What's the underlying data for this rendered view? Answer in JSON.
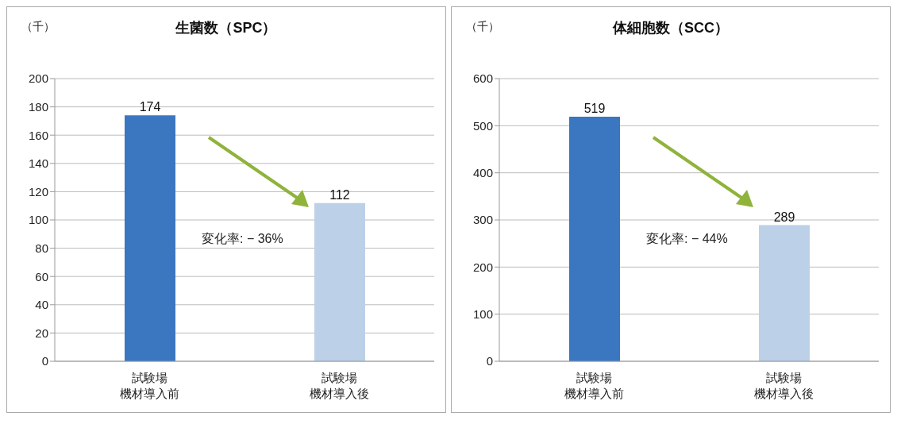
{
  "chart_data": [
    {
      "type": "bar",
      "title": "生菌数（SPC）",
      "ylabel": "（千）",
      "categories": [
        "試験場機材導入前",
        "試験場機材導入後"
      ],
      "values": [
        174,
        112
      ],
      "colors": [
        "#3b76c0",
        "#bcd0e8"
      ],
      "ylim": [
        0,
        200
      ],
      "yticks": [
        0,
        20,
        40,
        60,
        80,
        100,
        120,
        140,
        160,
        180,
        200
      ],
      "grid": "y",
      "data_labels": true,
      "annotations": [
        "変化率: − 36%"
      ]
    },
    {
      "type": "bar",
      "title": "体細胞数（SCC）",
      "ylabel": "（千）",
      "categories": [
        "試験場機材導入前",
        "試験場機材導入後"
      ],
      "values": [
        519,
        289
      ],
      "colors": [
        "#3b76c0",
        "#bcd0e8"
      ],
      "ylim": [
        0,
        600
      ],
      "yticks": [
        0,
        100,
        200,
        300,
        400,
        500,
        600
      ],
      "grid": "y",
      "data_labels": true,
      "annotations": [
        "変化率: − 44%"
      ]
    }
  ]
}
